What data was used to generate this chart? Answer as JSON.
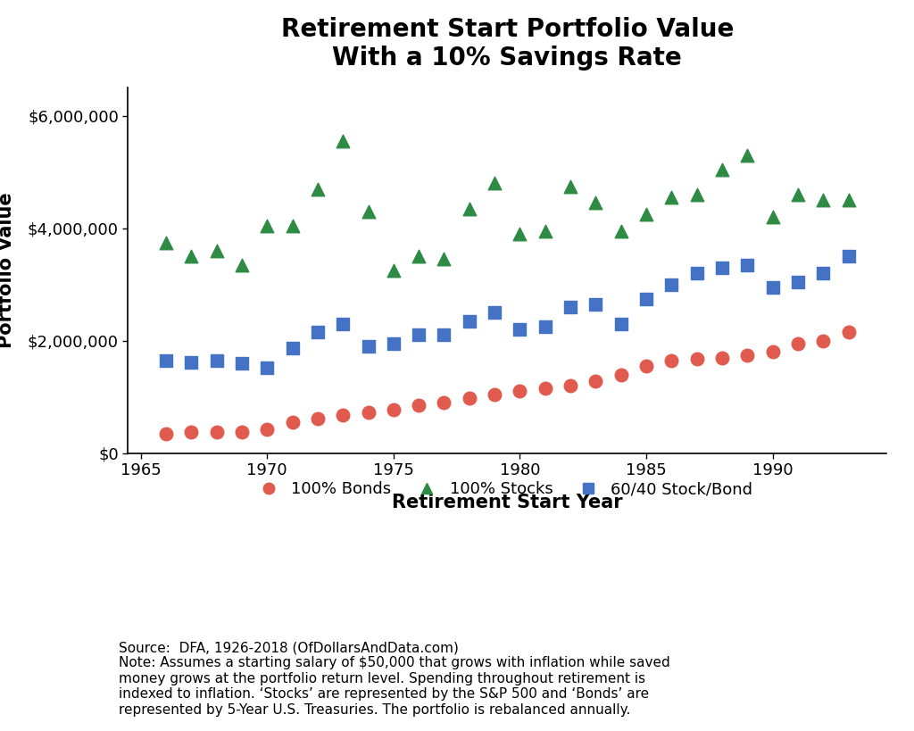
{
  "title": "Retirement Start Portfolio Value\nWith a 10% Savings Rate",
  "xlabel": "Retirement Start Year",
  "ylabel": "Portfolio Value",
  "source_text": "Source:  DFA, 1926-2018 (OfDollarsAndData.com)\nNote: Assumes a starting salary of $50,000 that grows with inflation while saved\nmoney grows at the portfolio return level. Spending throughout retirement is\nindexed to inflation. ‘Stocks’ are represented by the S&P 500 and ‘Bonds’ are\nrepresented by 5-Year U.S. Treasuries. The portfolio is rebalanced annually.",
  "years": [
    1966,
    1967,
    1968,
    1969,
    1970,
    1971,
    1972,
    1973,
    1974,
    1975,
    1976,
    1977,
    1978,
    1979,
    1980,
    1981,
    1982,
    1983,
    1984,
    1985,
    1986,
    1987,
    1988,
    1989,
    1990,
    1991,
    1992,
    1993
  ],
  "bonds": [
    350000,
    380000,
    380000,
    370000,
    430000,
    550000,
    620000,
    680000,
    720000,
    780000,
    850000,
    900000,
    980000,
    1050000,
    1100000,
    1150000,
    1200000,
    1280000,
    1400000,
    1550000,
    1650000,
    1680000,
    1700000,
    1750000,
    1800000,
    1950000,
    2000000,
    2150000
  ],
  "stocks": [
    3750000,
    3500000,
    3600000,
    3350000,
    4050000,
    4050000,
    4700000,
    5550000,
    4300000,
    3250000,
    3500000,
    3450000,
    4350000,
    4800000,
    3900000,
    3950000,
    4750000,
    4450000,
    3950000,
    4250000,
    4550000,
    4600000,
    5050000,
    5300000,
    4200000,
    4600000,
    4500000,
    4500000
  ],
  "mixed": [
    1650000,
    1620000,
    1650000,
    1600000,
    1520000,
    1870000,
    2150000,
    2300000,
    1900000,
    1950000,
    2100000,
    2100000,
    2350000,
    2500000,
    2200000,
    2250000,
    2600000,
    2650000,
    2300000,
    2750000,
    3000000,
    3200000,
    3300000,
    3350000,
    2950000,
    3050000,
    3200000,
    3500000
  ],
  "bonds_color": "#e05a4e",
  "stocks_color": "#2e8b44",
  "mixed_color": "#4472c4",
  "ylim": [
    0,
    6500000
  ],
  "yticks": [
    0,
    2000000,
    4000000,
    6000000
  ],
  "ytick_labels": [
    "$0",
    "$2,000,000",
    "$4,000,000",
    "$6,000,000"
  ],
  "xlim": [
    1964.5,
    1994.5
  ],
  "xticks": [
    1965,
    1970,
    1975,
    1980,
    1985,
    1990
  ],
  "title_fontsize": 20,
  "axis_label_fontsize": 15,
  "tick_fontsize": 13,
  "legend_fontsize": 13,
  "source_fontsize": 11,
  "marker_size": 110
}
